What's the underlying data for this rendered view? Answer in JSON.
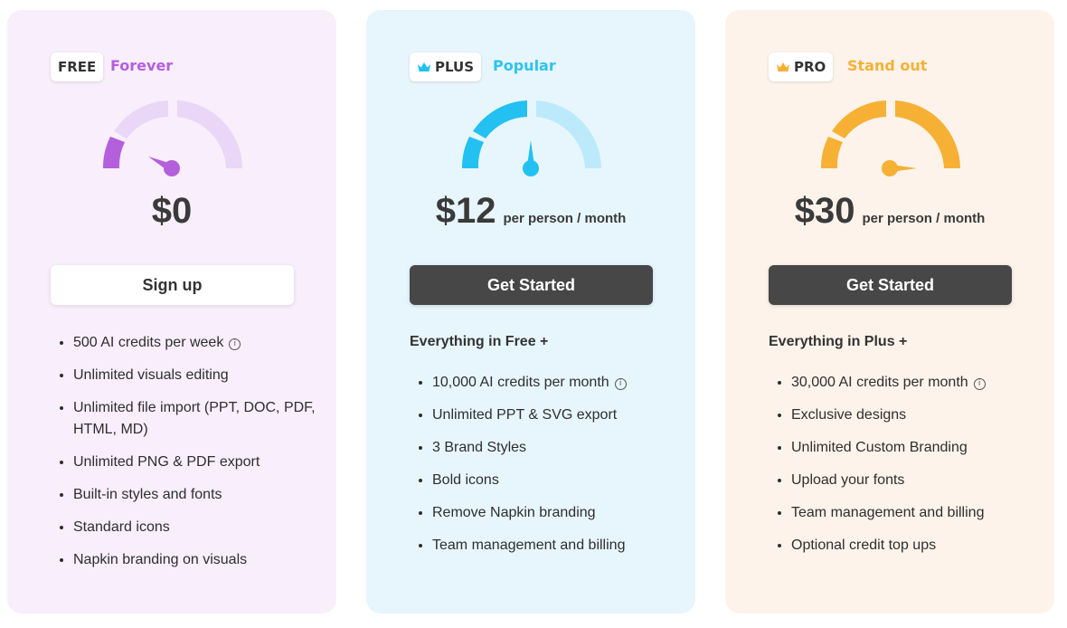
{
  "plans": [
    {
      "badge": "FREE",
      "tagline": "Forever",
      "price": "$0",
      "per": "",
      "cta": "Sign up",
      "includes": "",
      "features": [
        "500 AI credits per week",
        "Unlimited visuals editing",
        "Unlimited file import (PPT, DOC, PDF, HTML, MD)",
        "Unlimited PNG & PDF export",
        "Built-in styles and fonts",
        "Standard icons",
        "Napkin branding on visuals"
      ],
      "colors": {
        "background": "#f8eefc",
        "accent": "#b45fdc",
        "accent_light": "#ead6f6"
      }
    },
    {
      "badge": "PLUS",
      "tagline": "Popular",
      "price": "$12",
      "per": "per person / month",
      "cta": "Get Started",
      "includes": "Everything in Free +",
      "features": [
        "10,000 AI credits per month",
        "Unlimited PPT & SVG export",
        "3 Brand Styles",
        "Bold icons",
        "Remove Napkin branding",
        "Team management and billing"
      ],
      "colors": {
        "background": "#e7f6fd",
        "accent": "#22c1f2",
        "accent_light": "#bdeafb"
      }
    },
    {
      "badge": "PRO",
      "tagline": "Stand out",
      "price": "$30",
      "per": "per person / month",
      "cta": "Get Started",
      "includes": "Everything in Plus +",
      "features": [
        "30,000 AI credits per month",
        "Exclusive designs",
        "Unlimited Custom Branding",
        "Upload your fonts",
        "Team management and billing",
        "Optional credit top ups"
      ],
      "colors": {
        "background": "#fdf3eb",
        "accent": "#f6b135",
        "accent_light": "#f6b135"
      }
    }
  ],
  "icons": {
    "crown": "crown-icon",
    "info": "info-icon"
  },
  "info_glyph": "i"
}
